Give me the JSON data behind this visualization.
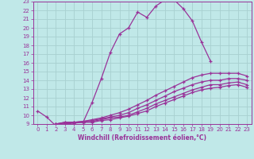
{
  "bg_color": "#c0e8e8",
  "grid_color": "#a8d0d0",
  "line_color": "#993399",
  "xlim": [
    -0.5,
    23.5
  ],
  "ylim": [
    9,
    23
  ],
  "xticks": [
    0,
    1,
    2,
    3,
    4,
    5,
    6,
    7,
    8,
    9,
    10,
    11,
    12,
    13,
    14,
    15,
    16,
    17,
    18,
    19,
    20,
    21,
    22,
    23
  ],
  "yticks": [
    9,
    10,
    11,
    12,
    13,
    14,
    15,
    16,
    17,
    18,
    19,
    20,
    21,
    22,
    23
  ],
  "xlabel": "Windchill (Refroidissement éolien,°C)",
  "lines": [
    {
      "x": [
        0,
        1,
        2,
        3,
        4,
        5,
        6,
        7,
        8,
        9,
        10,
        11,
        12,
        13,
        14,
        15,
        16,
        17,
        18,
        19
      ],
      "y": [
        10.5,
        9.8,
        8.8,
        9.0,
        9.2,
        9.2,
        11.5,
        14.2,
        17.2,
        19.3,
        20.0,
        21.8,
        21.2,
        22.5,
        23.2,
        23.2,
        22.2,
        20.8,
        18.4,
        16.2
      ]
    },
    {
      "x": [
        2,
        3,
        4,
        5,
        6,
        7,
        8,
        9,
        10,
        11,
        12,
        13,
        14,
        15,
        16,
        17,
        18,
        19,
        20,
        21,
        22,
        23
      ],
      "y": [
        9.0,
        9.2,
        9.2,
        9.3,
        9.5,
        9.7,
        10.0,
        10.3,
        10.7,
        11.2,
        11.7,
        12.3,
        12.8,
        13.3,
        13.8,
        14.3,
        14.6,
        14.8,
        14.8,
        14.8,
        14.8,
        14.5
      ]
    },
    {
      "x": [
        2,
        3,
        4,
        5,
        6,
        7,
        8,
        9,
        10,
        11,
        12,
        13,
        14,
        15,
        16,
        17,
        18,
        19,
        20,
        21,
        22,
        23
      ],
      "y": [
        9.0,
        9.2,
        9.2,
        9.3,
        9.4,
        9.6,
        9.8,
        10.0,
        10.3,
        10.8,
        11.2,
        11.7,
        12.2,
        12.7,
        13.1,
        13.5,
        13.8,
        14.0,
        14.0,
        14.2,
        14.2,
        14.0
      ]
    },
    {
      "x": [
        2,
        3,
        4,
        5,
        6,
        7,
        8,
        9,
        10,
        11,
        12,
        13,
        14,
        15,
        16,
        17,
        18,
        19,
        20,
        21,
        22,
        23
      ],
      "y": [
        9.0,
        9.1,
        9.2,
        9.2,
        9.3,
        9.5,
        9.7,
        9.8,
        10.0,
        10.4,
        10.8,
        11.3,
        11.7,
        12.1,
        12.5,
        12.9,
        13.2,
        13.5,
        13.5,
        13.7,
        13.8,
        13.5
      ]
    },
    {
      "x": [
        2,
        3,
        4,
        5,
        6,
        7,
        8,
        9,
        10,
        11,
        12,
        13,
        14,
        15,
        16,
        17,
        18,
        19,
        20,
        21,
        22,
        23
      ],
      "y": [
        9.0,
        9.0,
        9.1,
        9.2,
        9.2,
        9.4,
        9.5,
        9.7,
        9.9,
        10.2,
        10.5,
        11.0,
        11.4,
        11.8,
        12.2,
        12.6,
        12.9,
        13.1,
        13.2,
        13.4,
        13.5,
        13.2
      ]
    }
  ],
  "marker": "+",
  "markersize": 3.5,
  "linewidth": 0.9,
  "tick_fontsize": 5,
  "xlabel_fontsize": 5.5
}
